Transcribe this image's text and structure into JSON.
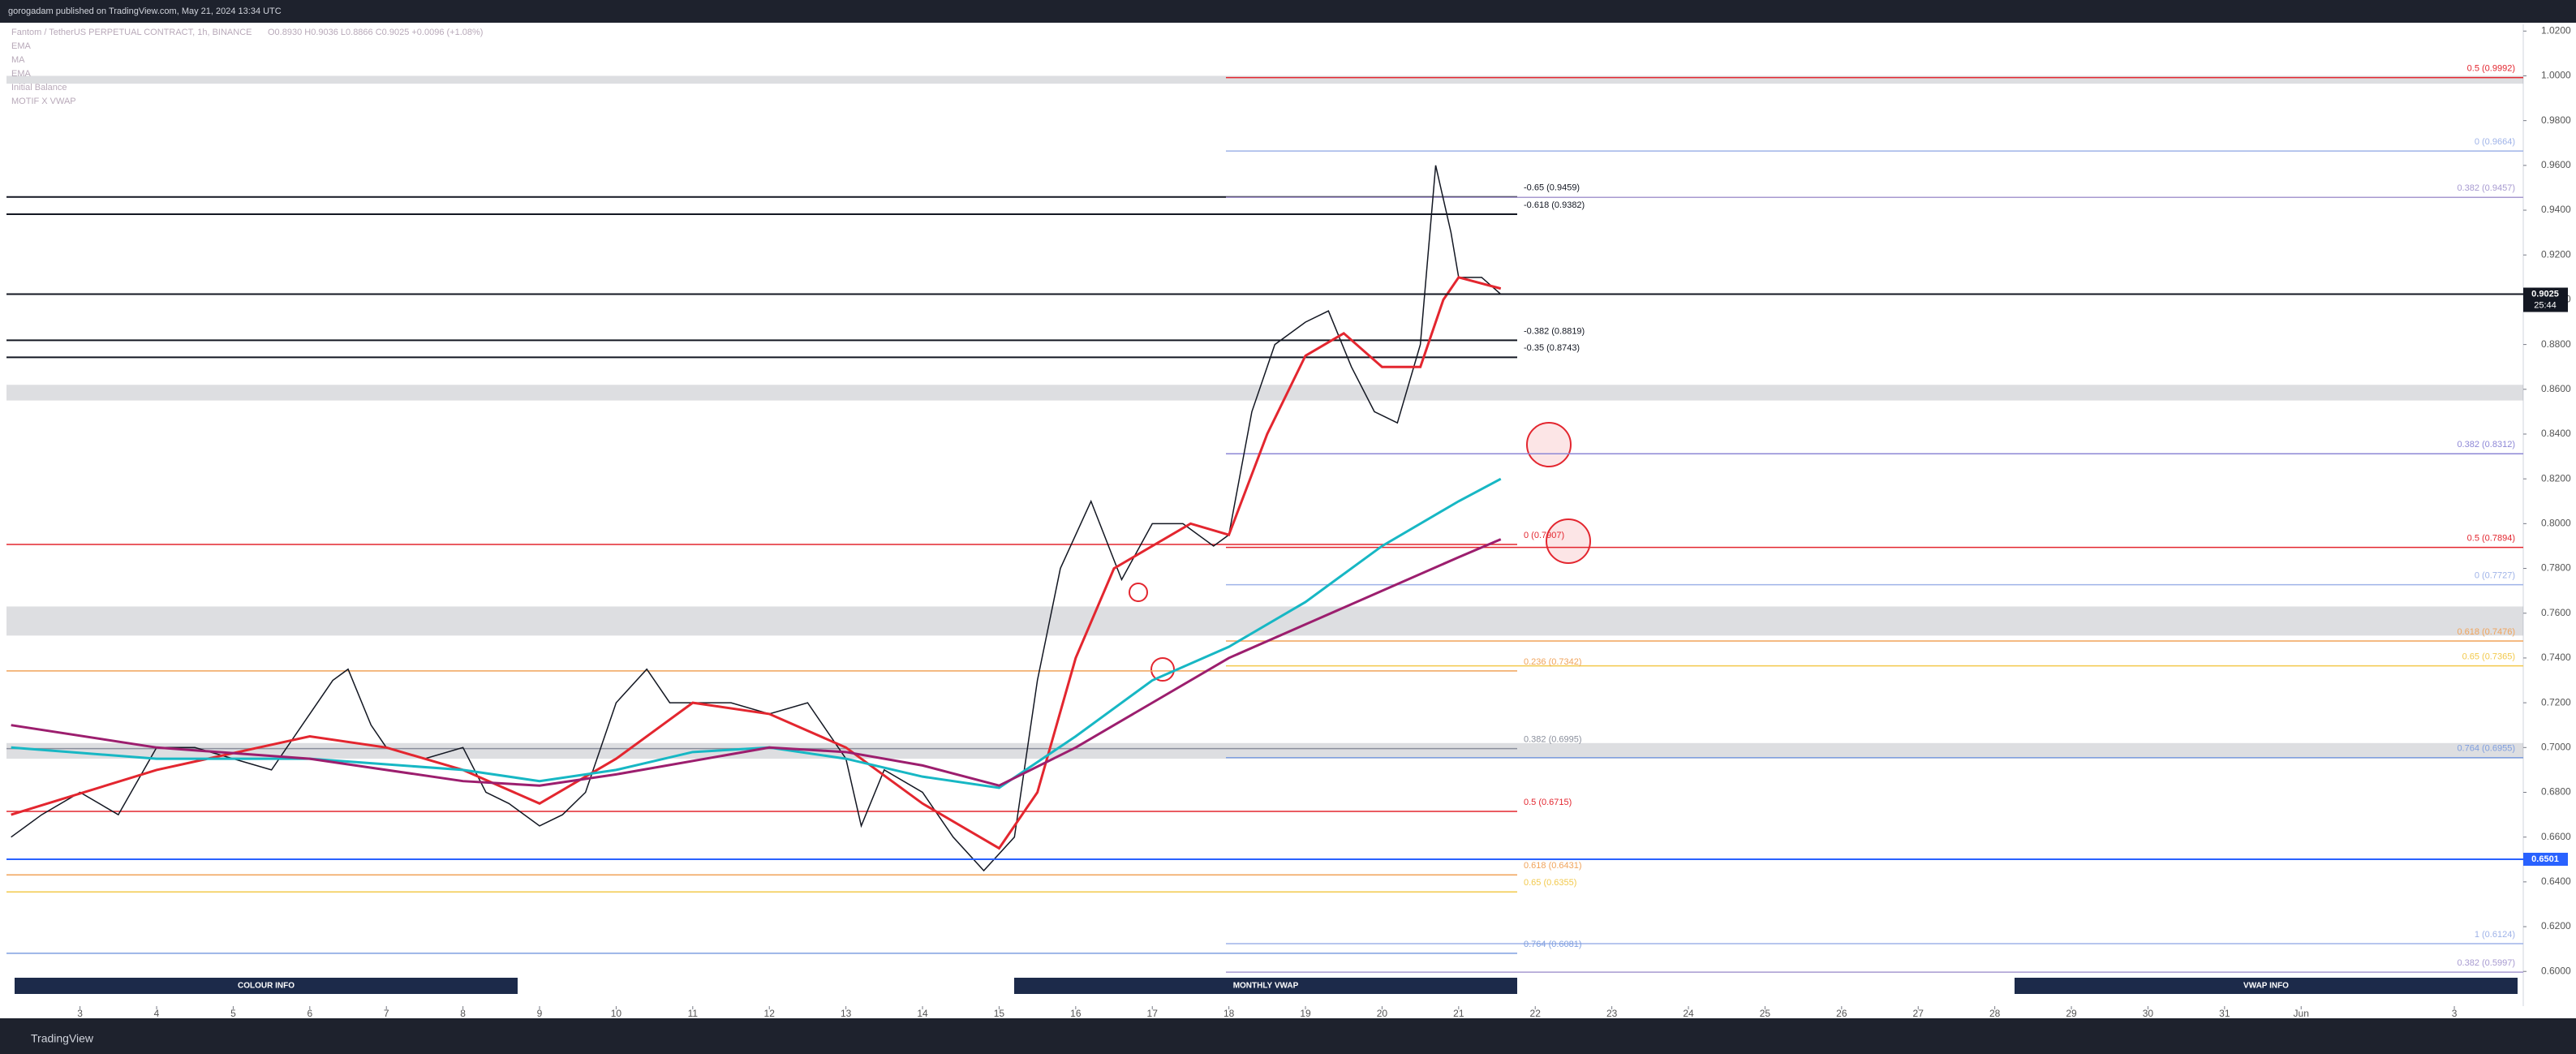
{
  "header": {
    "published": "gorogadam published on TradingView.com, May 21, 2024 13:34 UTC",
    "symbol": "Fantom / TetherUS PERPETUAL CONTRACT, 1h, BINANCE",
    "ohlc": "O0.8930 H0.9036 L0.8866 C0.9025 +0.0096 (+1.08%)",
    "indicators": [
      "EMA",
      "MA",
      "EMA",
      "Initial Balance",
      "MOTIF X VWAP"
    ]
  },
  "chart_data": {
    "type": "line",
    "xlim": [
      2.04,
      34.9
    ],
    "xticks": [
      3,
      4,
      5,
      6,
      7,
      8,
      9,
      10,
      11,
      12,
      13,
      14,
      15,
      16,
      17,
      18,
      19,
      20,
      21,
      22,
      23,
      24,
      25,
      26,
      27,
      28,
      29,
      30,
      31,
      {
        "value": 32,
        "label": "Jun"
      },
      {
        "value": 34,
        "label": "3"
      }
    ],
    "ylim": [
      0.599,
      1.023
    ],
    "yticks": [
      {
        "value": 0.6,
        "label": "0.6000"
      },
      {
        "value": 0.62,
        "label": "0.6200"
      },
      {
        "value": 0.64,
        "label": "0.6400"
      },
      {
        "value": 0.66,
        "label": "0.6600"
      },
      {
        "value": 0.68,
        "label": "0.6800"
      },
      {
        "value": 0.7,
        "label": "0.7000"
      },
      {
        "value": 0.72,
        "label": "0.7200"
      },
      {
        "value": 0.74,
        "label": "0.7400"
      },
      {
        "value": 0.76,
        "label": "0.7600"
      },
      {
        "value": 0.78,
        "label": "0.7800"
      },
      {
        "value": 0.8,
        "label": "0.8000"
      },
      {
        "value": 0.82,
        "label": "0.8200"
      },
      {
        "value": 0.84,
        "label": "0.8400"
      },
      {
        "value": 0.86,
        "label": "0.8600"
      },
      {
        "value": 0.88,
        "label": "0.8800"
      },
      {
        "value": 0.9,
        "label": "0.9000"
      },
      {
        "value": 0.92,
        "label": "0.9200"
      },
      {
        "value": 0.94,
        "label": "0.9400"
      },
      {
        "value": 0.96,
        "label": "0.9600"
      },
      {
        "value": 0.98,
        "label": "0.9800"
      },
      {
        "value": 1.0,
        "label": "1.0000"
      },
      {
        "value": 1.02,
        "label": "1.0200"
      }
    ],
    "series": [
      {
        "color": "#131722",
        "x": [
          2.1,
          2.5,
          3,
          3.5,
          4,
          4.5,
          5,
          5.5,
          6,
          6.3,
          6.5,
          6.8,
          7,
          7.5,
          8,
          8.3,
          8.6,
          9,
          9.3,
          9.6,
          10,
          10.4,
          10.7,
          11,
          11.5,
          12,
          12.5,
          13,
          13.2,
          13.5,
          14,
          14.4,
          14.8,
          15.2,
          15.5,
          15.8,
          16.2,
          16.6,
          17,
          17.4,
          17.8,
          18,
          18.3,
          18.6,
          19,
          19.3,
          19.6,
          19.9,
          20.2,
          20.5,
          20.7,
          20.9,
          21,
          21.3,
          21.55
        ],
        "values": [
          0.66,
          0.67,
          0.68,
          0.67,
          0.7,
          0.7,
          0.695,
          0.69,
          0.715,
          0.73,
          0.735,
          0.71,
          0.7,
          0.695,
          0.7,
          0.68,
          0.675,
          0.665,
          0.67,
          0.68,
          0.72,
          0.735,
          0.72,
          0.72,
          0.72,
          0.715,
          0.72,
          0.695,
          0.665,
          0.69,
          0.68,
          0.66,
          0.645,
          0.66,
          0.73,
          0.78,
          0.81,
          0.775,
          0.8,
          0.8,
          0.79,
          0.795,
          0.85,
          0.88,
          0.89,
          0.895,
          0.87,
          0.85,
          0.845,
          0.88,
          0.96,
          0.93,
          0.91,
          0.91,
          0.9025
        ]
      },
      {
        "color": "#e3262f",
        "x": [
          2.1,
          4,
          6,
          7,
          8,
          9,
          10,
          11,
          12,
          13,
          14,
          15,
          15.5,
          16,
          16.5,
          17.5,
          18,
          18.5,
          19,
          19.5,
          20,
          20.5,
          20.8,
          21,
          21.55
        ],
        "values": [
          0.67,
          0.69,
          0.705,
          0.7,
          0.69,
          0.675,
          0.695,
          0.72,
          0.715,
          0.7,
          0.675,
          0.655,
          0.68,
          0.74,
          0.78,
          0.8,
          0.795,
          0.84,
          0.875,
          0.885,
          0.87,
          0.87,
          0.9,
          0.91,
          0.905
        ]
      },
      {
        "color": "#17b7c4",
        "x": [
          2.1,
          4,
          6,
          8,
          9,
          10,
          11,
          12,
          13,
          14,
          15,
          16,
          17,
          18,
          19,
          20,
          21,
          21.55
        ],
        "values": [
          0.7,
          0.695,
          0.695,
          0.69,
          0.685,
          0.69,
          0.698,
          0.7,
          0.695,
          0.687,
          0.682,
          0.705,
          0.73,
          0.745,
          0.765,
          0.79,
          0.81,
          0.82
        ]
      },
      {
        "color": "#9c1e6e",
        "x": [
          2.1,
          4,
          6,
          8,
          9,
          10,
          12,
          13,
          14,
          15,
          16,
          17,
          18,
          19,
          20,
          21,
          21.55
        ],
        "values": [
          0.71,
          0.7,
          0.695,
          0.685,
          0.683,
          0.688,
          0.7,
          0.698,
          0.692,
          0.683,
          0.7,
          0.72,
          0.74,
          0.755,
          0.77,
          0.785,
          0.793
        ]
      }
    ],
    "zones": [
      {
        "low": 0.9965,
        "high": 1.0
      },
      {
        "low": 0.855,
        "high": 0.862
      },
      {
        "low": 0.75,
        "high": 0.763
      },
      {
        "low": 0.695,
        "high": 0.702
      }
    ],
    "levels": [
      {
        "value": 0.9992,
        "label": "0.5 (0.9992)",
        "color": "#e3262f",
        "side": "right"
      },
      {
        "value": 0.9664,
        "label": "0 (0.9664)",
        "color": "#9fb3e8",
        "side": "right"
      },
      {
        "value": 0.9459,
        "label": "-0.65 (0.9459)",
        "color": "#131722",
        "side": "left"
      },
      {
        "value": 0.9457,
        "label": "0.382 (0.9457)",
        "color": "#a79ad0",
        "side": "right"
      },
      {
        "value": 0.9382,
        "label": "-0.618 (0.9382)",
        "color": "#131722",
        "side": "left"
      },
      {
        "value": 0.8819,
        "label": "-0.382 (0.8819)",
        "color": "#131722",
        "side": "left"
      },
      {
        "value": 0.8743,
        "label": "-0.35 (0.8743)",
        "color": "#131722",
        "side": "left"
      },
      {
        "value": 0.8312,
        "label": "0.382 (0.8312)",
        "color": "#8d87d6",
        "side": "right"
      },
      {
        "value": 0.7907,
        "label": "0 (0.7907)",
        "color": "#e3262f",
        "side": "left"
      },
      {
        "value": 0.7894,
        "label": "0.5 (0.7894)",
        "color": "#e3262f",
        "side": "right"
      },
      {
        "value": 0.7727,
        "label": "0 (0.7727)",
        "color": "#9fb3e8",
        "side": "right"
      },
      {
        "value": 0.7476,
        "label": "0.618 (0.7476)",
        "color": "#f0a35a",
        "side": "right"
      },
      {
        "value": 0.7365,
        "label": "0.65 (0.7365)",
        "color": "#f2c94c",
        "side": "right"
      },
      {
        "value": 0.7342,
        "label": "0.236 (0.7342)",
        "color": "#f0a35a",
        "side": "left"
      },
      {
        "value": 0.6995,
        "label": "0.382 (0.6995)",
        "color": "#8a8f9c",
        "side": "left"
      },
      {
        "value": 0.6955,
        "label": "0.764 (0.6955)",
        "color": "#7f9fe0",
        "side": "right"
      },
      {
        "value": 0.6715,
        "label": "0.5 (0.6715)",
        "color": "#e3262f",
        "side": "left"
      },
      {
        "value": 0.6431,
        "label": "0.618 (0.6431)",
        "color": "#f0a35a",
        "side": "left"
      },
      {
        "value": 0.6355,
        "label": "0.65 (0.6355)",
        "color": "#f2c94c",
        "side": "left"
      },
      {
        "value": 0.6124,
        "label": "1 (0.6124)",
        "color": "#9fb3e8",
        "side": "right"
      },
      {
        "value": 0.6081,
        "label": "0.764 (0.6081)",
        "color": "#7f9fe0",
        "side": "left"
      },
      {
        "value": 0.5997,
        "label": "0.382 (0.5997)",
        "color": "#a79ad0",
        "side": "right"
      }
    ],
    "price_tags": [
      {
        "value": 0.9025,
        "label": "0.9025",
        "sub": "25:44",
        "color": "#131722"
      },
      {
        "value": 0.6501,
        "label": "0.6501",
        "color": "#2962ff"
      }
    ],
    "info_boxes": [
      "COLOUR INFO",
      "MONTHLY VWAP",
      "VWAP INFO"
    ]
  },
  "footer": "TradingView"
}
